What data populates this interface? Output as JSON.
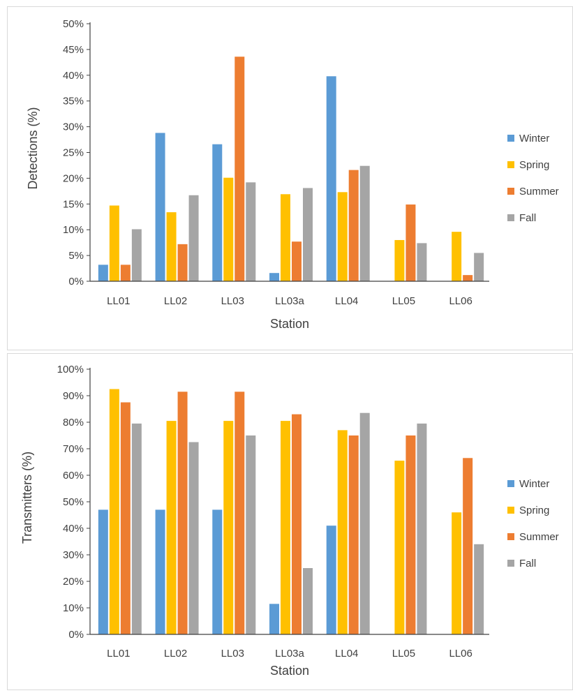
{
  "chart_data": [
    {
      "type": "bar",
      "categories": [
        "LL01",
        "LL02",
        "LL03",
        "LL03a",
        "LL04",
        "LL05",
        "LL06"
      ],
      "xlabel": "Station",
      "ylabel": "Detections (%)",
      "ylim": [
        0,
        50
      ],
      "ytick_step": 5,
      "yticks": [
        "0%",
        "5%",
        "10%",
        "15%",
        "20%",
        "25%",
        "30%",
        "35%",
        "40%",
        "45%",
        "50%"
      ],
      "grid": false,
      "legend_position": "right",
      "series": [
        {
          "name": "Winter",
          "color": "#5b9bd5",
          "values": [
            3.2,
            28.8,
            26.6,
            1.6,
            39.8,
            0,
            0
          ]
        },
        {
          "name": "Spring",
          "color": "#ffc000",
          "values": [
            14.7,
            13.4,
            20.1,
            16.9,
            17.3,
            8.0,
            9.6
          ]
        },
        {
          "name": "Summer",
          "color": "#ed7d31",
          "values": [
            3.2,
            7.2,
            43.6,
            7.7,
            21.6,
            14.9,
            1.2
          ]
        },
        {
          "name": "Fall",
          "color": "#a5a5a5",
          "values": [
            10.1,
            16.7,
            19.2,
            18.1,
            22.4,
            7.4,
            5.5
          ]
        }
      ]
    },
    {
      "type": "bar",
      "categories": [
        "LL01",
        "LL02",
        "LL03",
        "LL03a",
        "LL04",
        "LL05",
        "LL06"
      ],
      "xlabel": "Station",
      "ylabel": "Transmitters (%)",
      "ylim": [
        0,
        100
      ],
      "ytick_step": 10,
      "yticks": [
        "0%",
        "10%",
        "20%",
        "30%",
        "40%",
        "50%",
        "60%",
        "70%",
        "80%",
        "90%",
        "100%"
      ],
      "grid": false,
      "legend_position": "right",
      "series": [
        {
          "name": "Winter",
          "color": "#5b9bd5",
          "values": [
            47,
            47,
            47,
            11.5,
            41,
            0,
            0
          ]
        },
        {
          "name": "Spring",
          "color": "#ffc000",
          "values": [
            92.5,
            80.5,
            80.5,
            80.5,
            77,
            65.5,
            46
          ]
        },
        {
          "name": "Summer",
          "color": "#ed7d31",
          "values": [
            87.5,
            91.5,
            91.5,
            83,
            75,
            75,
            66.5
          ]
        },
        {
          "name": "Fall",
          "color": "#a5a5a5",
          "values": [
            79.5,
            72.5,
            75,
            25,
            83.5,
            79.5,
            34
          ]
        }
      ]
    }
  ]
}
